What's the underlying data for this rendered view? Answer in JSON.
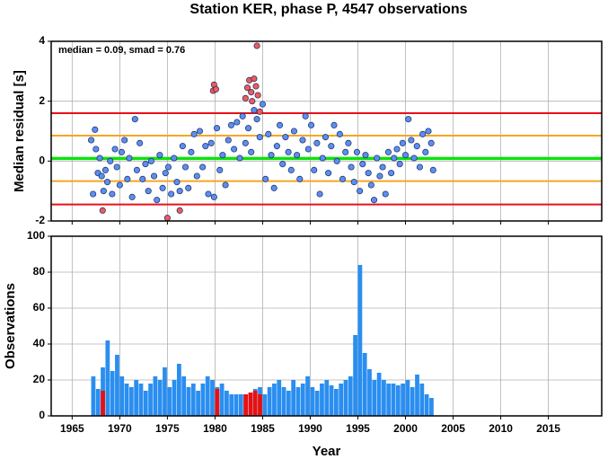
{
  "title": "Station KER, phase P, 4547 observations",
  "chart_data": [
    {
      "type": "scatter",
      "ylabel": "Median residual [s]",
      "annotation": "median = 0.09, smad = 0.76",
      "xlim": [
        1962.8,
        2020.6
      ],
      "xticks": [
        1965,
        1970,
        1975,
        1980,
        1985,
        1990,
        1995,
        2000,
        2005,
        2010,
        2015
      ],
      "xtick_labels": false,
      "ylim": [
        -2,
        4
      ],
      "yticks": [
        -2,
        0,
        2,
        4
      ],
      "grid": true,
      "hlines": [
        {
          "value": 1.6,
          "color": "#e8101a"
        },
        {
          "value": 0.85,
          "color": "#f5a623"
        },
        {
          "value": 0.09,
          "color": "#10e010"
        },
        {
          "value": -0.67,
          "color": "#f5a623"
        },
        {
          "value": -1.45,
          "color": "#e8101a"
        }
      ],
      "series": [
        {
          "color": "#5b8ff0",
          "x": [
            1967.0,
            1967.2,
            1967.4,
            1967.5,
            1967.7,
            1967.9,
            1968.1,
            1968.3,
            1968.5,
            1968.7,
            1969.0,
            1969.2,
            1969.5,
            1969.7,
            1970.0,
            1970.2,
            1970.5,
            1970.8,
            1971.0,
            1971.3,
            1971.6,
            1971.8,
            1972.1,
            1972.4,
            1972.7,
            1973.0,
            1973.3,
            1973.6,
            1973.9,
            1974.2,
            1974.5,
            1974.8,
            1975.1,
            1975.4,
            1975.7,
            1976.0,
            1976.3,
            1976.6,
            1976.9,
            1977.2,
            1977.5,
            1977.8,
            1978.1,
            1978.4,
            1978.7,
            1979.0,
            1979.3,
            1979.6,
            1979.9,
            1980.2,
            1980.5,
            1980.8,
            1981.1,
            1981.4,
            1981.7,
            1982.0,
            1982.3,
            1982.6,
            1982.9,
            1983.2,
            1983.5,
            1983.8,
            1984.1,
            1984.4,
            1984.7,
            1985.0,
            1985.3,
            1985.6,
            1985.9,
            1986.2,
            1986.5,
            1986.8,
            1987.1,
            1987.4,
            1987.7,
            1988.0,
            1988.3,
            1988.6,
            1988.9,
            1989.2,
            1989.5,
            1989.8,
            1990.1,
            1990.4,
            1990.7,
            1991.0,
            1991.3,
            1991.6,
            1991.9,
            1992.2,
            1992.5,
            1992.8,
            1993.1,
            1993.4,
            1993.7,
            1994.0,
            1994.3,
            1994.6,
            1994.9,
            1995.2,
            1995.5,
            1995.8,
            1996.1,
            1996.4,
            1996.7,
            1997.0,
            1997.3,
            1997.6,
            1997.9,
            1998.2,
            1998.5,
            1998.8,
            1999.1,
            1999.4,
            1999.7,
            2000.0,
            2000.3,
            2000.6,
            2000.9,
            2001.2,
            2001.5,
            2001.8,
            2002.1,
            2002.4,
            2002.7,
            2002.9
          ],
          "values": [
            0.7,
            -1.1,
            1.05,
            0.4,
            -0.4,
            0.1,
            -0.5,
            -1.0,
            -0.3,
            -0.7,
            0.0,
            -1.1,
            0.4,
            -0.2,
            -0.8,
            0.3,
            0.7,
            -0.6,
            0.1,
            -1.2,
            1.4,
            -0.3,
            0.6,
            -0.6,
            -0.1,
            -1.0,
            0.0,
            -0.5,
            -1.3,
            0.2,
            -0.9,
            -0.4,
            -0.2,
            -1.1,
            0.1,
            -0.7,
            -1.0,
            0.5,
            -0.2,
            -0.9,
            0.3,
            0.9,
            -0.5,
            1.0,
            -0.2,
            0.5,
            -1.1,
            0.6,
            -1.2,
            1.1,
            -0.3,
            0.2,
            -0.8,
            0.7,
            1.2,
            0.4,
            1.3,
            0.1,
            1.5,
            0.6,
            1.1,
            0.3,
            1.7,
            1.4,
            0.8,
            1.9,
            -0.6,
            0.9,
            0.2,
            -0.9,
            0.5,
            1.2,
            -0.1,
            0.8,
            0.3,
            -0.3,
            1.0,
            0.2,
            -0.6,
            0.7,
            1.5,
            0.4,
            1.2,
            -0.3,
            0.6,
            -1.1,
            0.1,
            0.8,
            -0.4,
            0.5,
            1.2,
            0.0,
            0.9,
            -0.6,
            0.3,
            0.6,
            -0.2,
            -0.7,
            0.3,
            -1.0,
            -0.1,
            0.2,
            -0.4,
            -0.8,
            -1.3,
            0.1,
            -0.5,
            -0.2,
            -1.1,
            0.3,
            -0.4,
            0.1,
            0.4,
            -0.1,
            0.6,
            0.2,
            1.4,
            0.7,
            0.1,
            0.5,
            -0.2,
            0.9,
            0.3,
            1.0,
            0.6,
            -0.3
          ]
        },
        {
          "color": "#f05a5a",
          "x": [
            1968.2,
            1975.0,
            1976.3,
            1979.9,
            1979.8,
            1980.1,
            1983.2,
            1983.4,
            1983.6,
            1983.9,
            1984.1,
            1984.3,
            1984.5,
            1984.4,
            1983.8,
            1984.7
          ],
          "values": [
            -1.65,
            -1.9,
            -1.65,
            2.55,
            2.35,
            2.4,
            2.1,
            2.45,
            2.7,
            2.0,
            2.75,
            2.5,
            2.2,
            3.85,
            2.3,
            1.65
          ]
        }
      ]
    },
    {
      "type": "bar",
      "ylabel": "Observations",
      "xlabel": "Year",
      "xlim": [
        1962.8,
        2020.6
      ],
      "xticks": [
        1965,
        1970,
        1975,
        1980,
        1985,
        1990,
        1995,
        2000,
        2005,
        2010,
        2015
      ],
      "xtick_labels": true,
      "ylim": [
        0,
        100
      ],
      "yticks": [
        0,
        20,
        40,
        60,
        80,
        100
      ],
      "grid": true,
      "x": [
        1967,
        1967.5,
        1968,
        1968.5,
        1969,
        1969.5,
        1970,
        1970.5,
        1971,
        1971.5,
        1972,
        1972.5,
        1973,
        1973.5,
        1974,
        1974.5,
        1975,
        1975.5,
        1976,
        1976.5,
        1977,
        1977.5,
        1978,
        1978.5,
        1979,
        1979.5,
        1980,
        1980.5,
        1981,
        1981.5,
        1982,
        1982.5,
        1983,
        1983.5,
        1984,
        1984.5,
        1985,
        1985.5,
        1986,
        1986.5,
        1987,
        1987.5,
        1988,
        1988.5,
        1989,
        1989.5,
        1990,
        1990.5,
        1991,
        1991.5,
        1992,
        1992.5,
        1993,
        1993.5,
        1994,
        1994.5,
        1995,
        1995.5,
        1996,
        1996.5,
        1997,
        1997.5,
        1998,
        1998.5,
        1999,
        1999.5,
        2000,
        2000.5,
        2001,
        2001.5,
        2002,
        2002.5
      ],
      "series": [
        {
          "color": "#2a8ef0",
          "values": [
            22,
            15,
            27,
            42,
            25,
            34,
            22,
            18,
            16,
            20,
            18,
            14,
            18,
            22,
            20,
            27,
            16,
            20,
            29,
            22,
            16,
            18,
            14,
            18,
            22,
            20,
            16,
            18,
            14,
            12,
            12,
            12,
            12,
            12,
            15,
            16,
            12,
            16,
            18,
            20,
            16,
            14,
            20,
            16,
            18,
            22,
            16,
            14,
            18,
            20,
            17,
            15,
            18,
            20,
            22,
            45,
            84,
            35,
            26,
            20,
            24,
            20,
            18,
            18,
            17,
            18,
            20,
            16,
            23,
            18,
            12,
            10
          ]
        },
        {
          "color": "#e81010",
          "values": [
            null,
            null,
            14,
            null,
            null,
            null,
            null,
            null,
            null,
            null,
            null,
            null,
            null,
            null,
            null,
            null,
            null,
            null,
            null,
            null,
            null,
            null,
            null,
            null,
            null,
            null,
            15,
            null,
            null,
            null,
            null,
            null,
            12,
            13,
            14,
            12,
            null,
            null,
            null,
            null,
            null,
            null,
            null,
            null,
            null,
            null,
            null,
            null,
            null,
            null,
            null,
            null,
            null,
            null,
            null,
            null,
            null,
            null,
            null,
            null,
            null,
            null,
            null,
            null,
            null,
            null,
            null,
            null,
            null,
            null,
            null,
            null
          ]
        }
      ]
    }
  ]
}
